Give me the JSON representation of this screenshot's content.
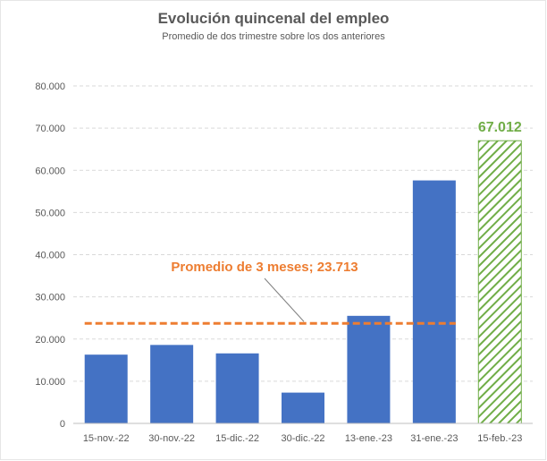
{
  "chart_data": {
    "type": "bar",
    "title": "Evolución quincenal del empleo",
    "subtitle": "Promedio de dos trimestre sobre los dos anteriores",
    "categories": [
      "15-nov.-22",
      "30-nov.-22",
      "15-dic.-22",
      "30-dic.-22",
      "13-ene.-23",
      "31-ene.-23",
      "15-feb.-23"
    ],
    "values": [
      16300,
      18600,
      16600,
      7300,
      25500,
      57600,
      67012
    ],
    "highlight_label": "67.012",
    "ylim": [
      0,
      80000
    ],
    "yticks": [
      "0",
      "10.000",
      "20.000",
      "30.000",
      "40.000",
      "50.000",
      "60.000",
      "70.000",
      "80.000"
    ],
    "ytick_values": [
      0,
      10000,
      20000,
      30000,
      40000,
      50000,
      60000,
      70000,
      80000
    ],
    "grid": true,
    "reference_line": {
      "value": 23713,
      "label": "Promedio de 3 meses; 23.713"
    },
    "colors": {
      "bar": "#4472c4",
      "highlight": "#70ad47",
      "reference": "#ed7d31",
      "grid": "#d9d9d9",
      "text": "#595959"
    }
  }
}
